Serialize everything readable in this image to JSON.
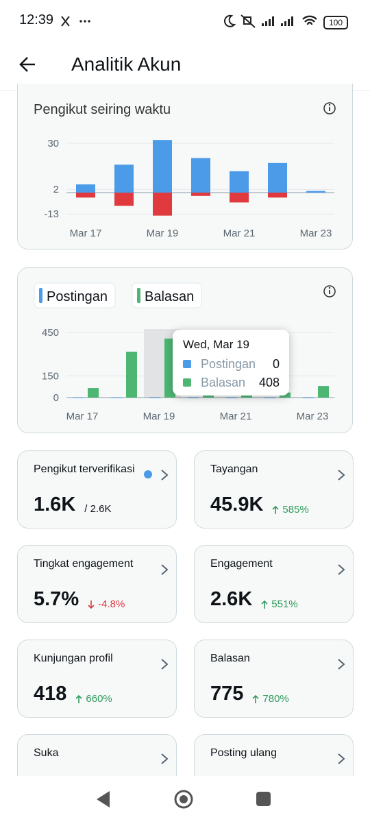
{
  "status_bar": {
    "time": "12:39",
    "battery": "100"
  },
  "header": {
    "title": "Analitik Akun"
  },
  "followers_chart": {
    "type": "bar",
    "title": "Pengikut seiring waktu",
    "categories": [
      "Mar 17",
      null,
      "Mar 19",
      null,
      "Mar 21",
      null,
      "Mar 23"
    ],
    "series": [
      {
        "color": "#4b9be8",
        "values": [
          5,
          17,
          32,
          21,
          13,
          18,
          1
        ]
      },
      {
        "color": "#e0393e",
        "values": [
          -3,
          -8,
          -14,
          -2,
          -6,
          -3,
          0
        ]
      }
    ],
    "ylim": [
      -14,
      32
    ],
    "yticks": [
      30,
      2,
      -13
    ],
    "grid": true
  },
  "posts_chart": {
    "type": "grouped_bar",
    "categories": [
      "Mar 17",
      null,
      "Mar 19",
      null,
      "Mar 21",
      null,
      "Mar 23"
    ],
    "series": [
      {
        "name": "Postingan",
        "color": "#4b9be8",
        "values": [
          1,
          1,
          0,
          0,
          0,
          0,
          0
        ]
      },
      {
        "name": "Balasan",
        "color": "#4cb672",
        "values": [
          66,
          317,
          408,
          40,
          30,
          35,
          80
        ]
      }
    ],
    "ylim": [
      0,
      450
    ],
    "yticks": [
      450,
      150,
      0
    ],
    "grid": true,
    "tooltip": {
      "title": "Wed, Mar 19",
      "index": 2
    }
  },
  "metrics": [
    {
      "label": "Pengikut terverifikasi",
      "value": "1.6K",
      "secondary": "/ 2.6K",
      "verified": true
    },
    {
      "label": "Tayangan",
      "value": "45.9K",
      "change": "585%",
      "direction": "up"
    },
    {
      "label": "Tingkat engagement",
      "value": "5.7%",
      "change": "-4.8%",
      "direction": "down"
    },
    {
      "label": "Engagement",
      "value": "2.6K",
      "change": "551%",
      "direction": "up"
    },
    {
      "label": "Kunjungan profil",
      "value": "418",
      "change": "660%",
      "direction": "up"
    },
    {
      "label": "Balasan",
      "value": "775",
      "change": "780%",
      "direction": "up"
    },
    {
      "label": "Suka"
    },
    {
      "label": "Posting ulang"
    }
  ]
}
